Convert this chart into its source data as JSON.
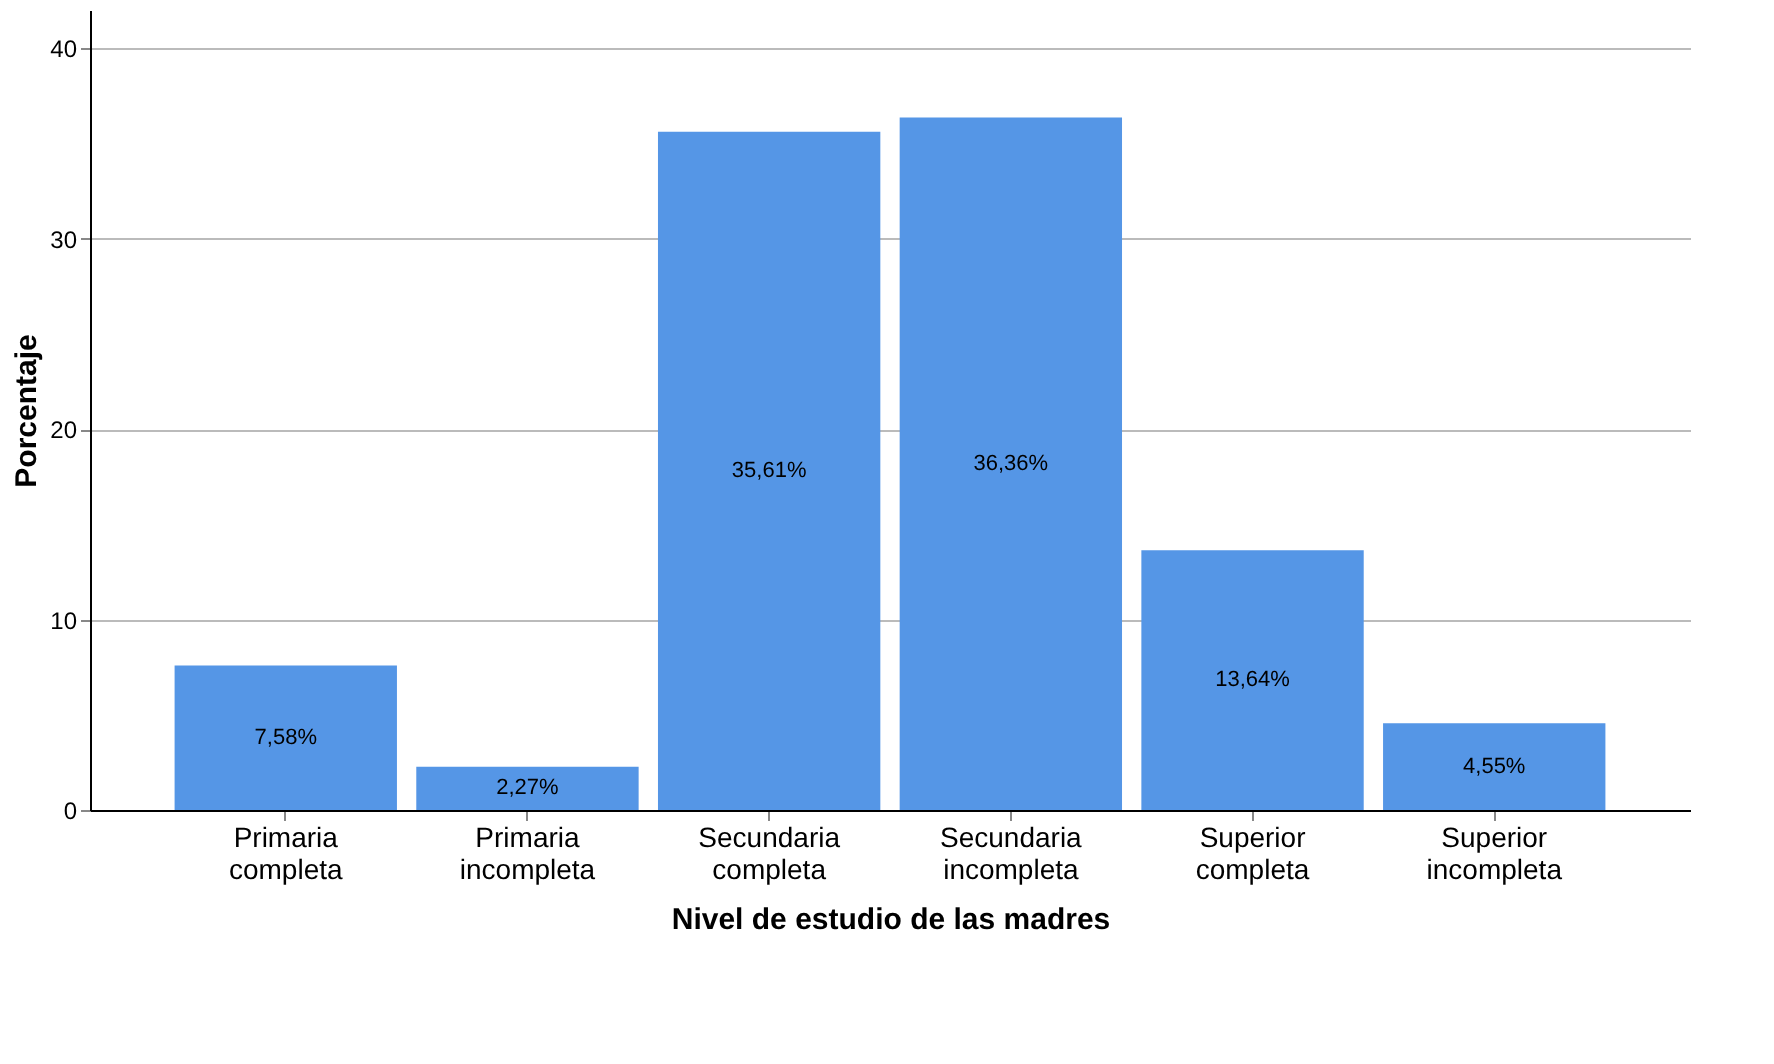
{
  "chart_data": {
    "type": "bar",
    "xlabel": "Nivel de estudio de las madres",
    "ylabel": "Porcentaje",
    "categories": [
      "Primaria completa",
      "Primaria incompleta",
      "Secundaria completa",
      "Secundaria incompleta",
      "Superior completa",
      "Superior incompleta"
    ],
    "values": [
      7.58,
      2.27,
      35.61,
      36.36,
      13.64,
      4.55
    ],
    "value_labels": [
      "7,58%",
      "2,27%",
      "35,61%",
      "36,36%",
      "13,64%",
      "4,55%"
    ],
    "color": "#5596e6",
    "ylim": [
      0,
      42
    ],
    "yticks": [
      0,
      10,
      20,
      30,
      40
    ],
    "grid": "y"
  }
}
